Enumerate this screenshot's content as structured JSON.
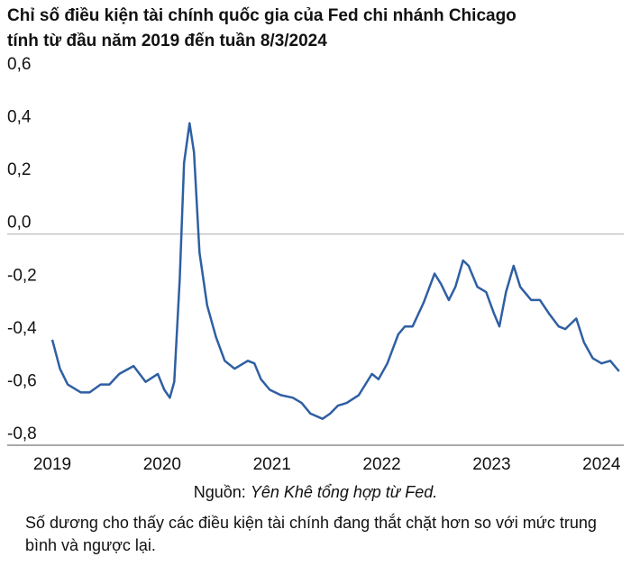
{
  "chart_data": {
    "type": "line",
    "title": [
      "Chỉ số điều kiện tài chính quốc gia của Fed chi nhánh Chicago",
      "tính từ đầu năm 2019 đến tuần 8/3/2024"
    ],
    "source_label": "Nguồn:",
    "source": "Yên Khê tổng hợp từ Fed.",
    "note": "Số dương cho thấy các điều kiện tài chính đang thắt chặt hơn so với mức trung bình và ngược lại.",
    "x": [
      2019.0,
      2019.07,
      2019.14,
      2019.26,
      2019.34,
      2019.44,
      2019.52,
      2019.61,
      2019.74,
      2019.85,
      2019.96,
      2020.02,
      2020.07,
      2020.11,
      2020.16,
      2020.2,
      2020.25,
      2020.29,
      2020.34,
      2020.41,
      2020.49,
      2020.57,
      2020.66,
      2020.78,
      2020.84,
      2020.9,
      2020.98,
      2021.08,
      2021.19,
      2021.27,
      2021.35,
      2021.46,
      2021.53,
      2021.6,
      2021.68,
      2021.79,
      2021.91,
      2021.97,
      2022.05,
      2022.15,
      2022.21,
      2022.28,
      2022.38,
      2022.48,
      2022.54,
      2022.61,
      2022.67,
      2022.74,
      2022.79,
      2022.87,
      2022.95,
      2023.02,
      2023.07,
      2023.13,
      2023.2,
      2023.26,
      2023.36,
      2023.44,
      2023.52,
      2023.61,
      2023.67,
      2023.77,
      2023.84,
      2023.92,
      2024.0,
      2024.08,
      2024.16
    ],
    "series": [
      {
        "color": "#2f5fa3",
        "values": [
          -0.4,
          -0.51,
          -0.57,
          -0.6,
          -0.6,
          -0.57,
          -0.57,
          -0.53,
          -0.5,
          -0.56,
          -0.53,
          -0.59,
          -0.62,
          -0.56,
          -0.17,
          0.27,
          0.42,
          0.31,
          -0.07,
          -0.27,
          -0.39,
          -0.48,
          -0.51,
          -0.48,
          -0.49,
          -0.55,
          -0.59,
          -0.61,
          -0.62,
          -0.64,
          -0.68,
          -0.7,
          -0.68,
          -0.65,
          -0.64,
          -0.61,
          -0.53,
          -0.55,
          -0.49,
          -0.38,
          -0.35,
          -0.35,
          -0.26,
          -0.15,
          -0.19,
          -0.25,
          -0.2,
          -0.1,
          -0.12,
          -0.2,
          -0.22,
          -0.3,
          -0.35,
          -0.22,
          -0.12,
          -0.2,
          -0.25,
          -0.25,
          -0.3,
          -0.35,
          -0.36,
          -0.32,
          -0.41,
          -0.47,
          -0.49,
          -0.48,
          -0.52
        ]
      }
    ],
    "xlim": [
      2019,
      2024.17
    ],
    "xticks": [
      2019,
      2020,
      2021,
      2022,
      2023,
      2024
    ],
    "ylim": [
      -0.8,
      0.6
    ],
    "yticks": [
      {
        "value": -0.8,
        "label": "-0,8"
      },
      {
        "value": -0.6,
        "label": "-0,6"
      },
      {
        "value": -0.4,
        "label": "-0,4"
      },
      {
        "value": -0.2,
        "label": "-0,2"
      },
      {
        "value": 0,
        "label": "0,0"
      },
      {
        "value": 0.2,
        "label": "0,2"
      },
      {
        "value": 0.4,
        "label": "0,4"
      },
      {
        "value": 0.6,
        "label": "0,6"
      }
    ]
  }
}
